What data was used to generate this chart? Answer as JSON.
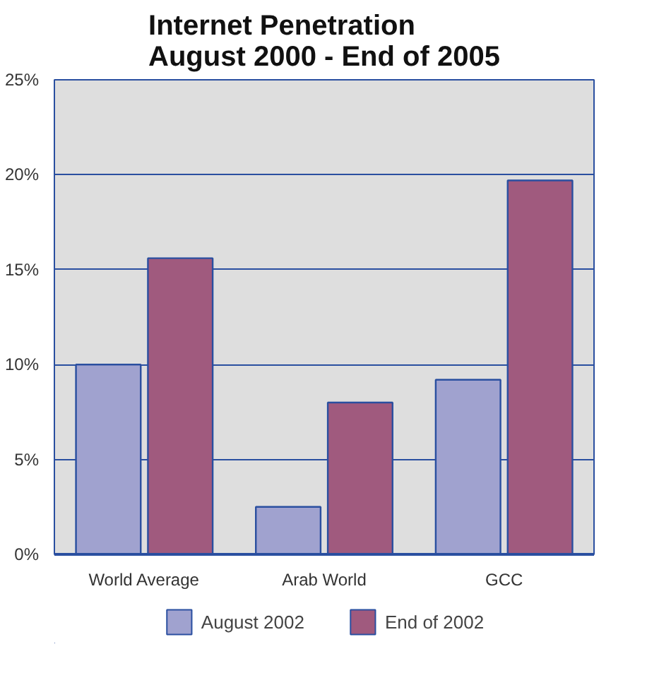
{
  "chart_data": {
    "type": "bar",
    "title": "Internet Penetration\nAugust 2000 - End of 2005",
    "categories": [
      "World Average",
      "Arab World",
      "GCC"
    ],
    "series": [
      {
        "name": "August 2002",
        "color": "#a0a2cf",
        "values": [
          10,
          2.5,
          9.2
        ]
      },
      {
        "name": "End of 2002",
        "color": "#a05a7e",
        "values": [
          15.6,
          8,
          19.7
        ]
      }
    ],
    "ylim": [
      0,
      25
    ],
    "yticks": [
      {
        "value": 0,
        "label": "0%"
      },
      {
        "value": 5,
        "label": "5%"
      },
      {
        "value": 10,
        "label": "10%"
      },
      {
        "value": 15,
        "label": "15%"
      },
      {
        "value": 20,
        "label": "20%"
      },
      {
        "value": 25,
        "label": "25%"
      }
    ],
    "grid": "y",
    "legend": "bottom"
  }
}
